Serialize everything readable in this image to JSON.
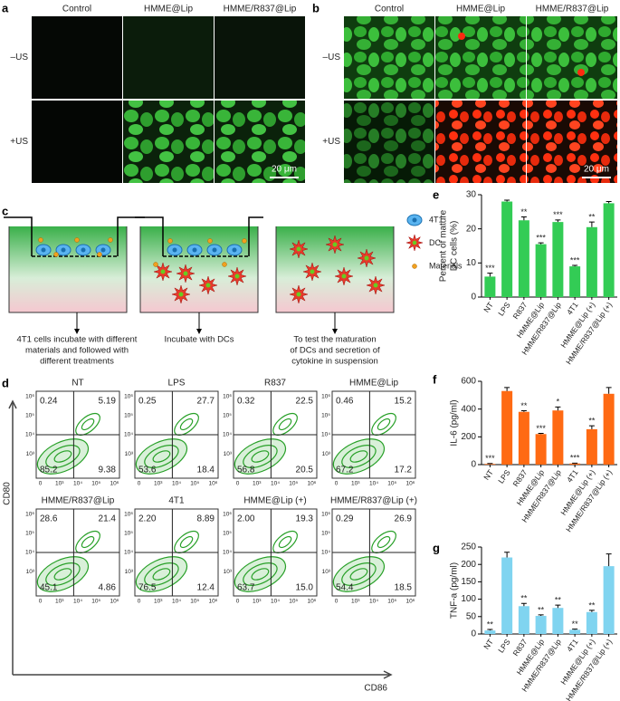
{
  "panel_labels": [
    "a",
    "b",
    "c",
    "d",
    "e",
    "f",
    "g"
  ],
  "microscopy": {
    "a": {
      "columns": [
        "Control",
        "HMME@Lip",
        "HMME/R837@Lip"
      ],
      "rows": [
        "–US",
        "+US"
      ],
      "scale_bar": "20 μm"
    },
    "b": {
      "columns": [
        "Control",
        "HMME@Lip",
        "HMME/R837@Lip"
      ],
      "rows": [
        "–US",
        "+US"
      ],
      "scale_bar": "20 μm"
    }
  },
  "schematic": {
    "legend": [
      "4T1",
      "DC",
      "Materials"
    ],
    "steps": [
      [
        "4T1 cells incubate with different",
        "materials and followed with",
        "different treatments"
      ],
      [
        "Incubate with DCs"
      ],
      [
        "To test the maturation",
        "of DCs and secretion of",
        "cytokine in suspension"
      ]
    ]
  },
  "flow": {
    "y_axis_label": "CD80",
    "x_axis_label": "CD86",
    "tick_labels": [
      "0",
      "10³",
      "10⁴",
      "10⁵",
      "10⁶"
    ],
    "plots": [
      {
        "title": "NT",
        "quadrants": [
          "0.24",
          "5.19",
          "85.2",
          "9.38"
        ]
      },
      {
        "title": "LPS",
        "quadrants": [
          "0.25",
          "27.7",
          "53.6",
          "18.4"
        ]
      },
      {
        "title": "R837",
        "quadrants": [
          "0.32",
          "22.5",
          "56.8",
          "20.5"
        ]
      },
      {
        "title": "HMME@Lip",
        "quadrants": [
          "0.46",
          "15.2",
          "67.2",
          "17.2"
        ]
      },
      {
        "title": "HMME/R837@Lip",
        "quadrants": [
          "28.6",
          "21.4",
          "45.1",
          "4.86"
        ]
      },
      {
        "title": "4T1",
        "quadrants": [
          "2.20",
          "8.89",
          "76.5",
          "12.4"
        ]
      },
      {
        "title": "HMME@Lip (+)",
        "quadrants": [
          "2.00",
          "19.3",
          "63.7",
          "15.0"
        ]
      },
      {
        "title": "HMME/R837@Lip (+)",
        "quadrants": [
          "0.29",
          "26.9",
          "54.4",
          "18.5"
        ]
      }
    ]
  },
  "chart_data": [
    {
      "type": "bar",
      "ylabel": [
        "Percent of mature",
        "DC cells (%)"
      ],
      "categories": [
        "NT",
        "LPS",
        "R837",
        "HMME@Lip",
        "HMME/R837@Lip",
        "4T1",
        "HMME@Lip (+)",
        "HMME/R837@Lip (+)"
      ],
      "values": [
        6,
        28,
        22.5,
        15.5,
        22,
        9,
        20.5,
        27.5
      ],
      "errors": [
        1,
        0.4,
        1,
        0.4,
        0.6,
        0.3,
        1.5,
        0.5
      ],
      "significance": [
        "***",
        null,
        "**",
        "***",
        "***",
        "***",
        "**",
        null
      ],
      "color": "#33cc55",
      "ylim": [
        0,
        30
      ],
      "yticks": [
        0,
        10,
        20,
        30
      ]
    },
    {
      "type": "bar",
      "ylabel": [
        "IL-6 (pg/ml)"
      ],
      "categories": [
        "NT",
        "LPS",
        "R837",
        "HMME@Lip",
        "HMME/R837@Lip",
        "4T1",
        "HMME@Lip (+)",
        "HMME/R837@Lip (+)"
      ],
      "values": [
        5,
        530,
        380,
        220,
        390,
        8,
        255,
        510
      ],
      "errors": [
        3,
        25,
        8,
        5,
        25,
        3,
        25,
        45
      ],
      "significance": [
        "***",
        null,
        "**",
        "***",
        "*",
        "***",
        "**",
        null
      ],
      "color": "#ff6a13",
      "ylim": [
        0,
        600
      ],
      "yticks": [
        0,
        200,
        400,
        600
      ]
    },
    {
      "type": "bar",
      "ylabel": [
        "TNF-a (pg/ml)"
      ],
      "categories": [
        "NT",
        "LPS",
        "R837",
        "HMME@Lip",
        "HMME/R837@Lip",
        "4T1",
        "HMME@Lip (+)",
        "HMME/R837@Lip (+)"
      ],
      "values": [
        10,
        220,
        80,
        52,
        75,
        12,
        63,
        195
      ],
      "errors": [
        3,
        15,
        8,
        3,
        8,
        2,
        5,
        35
      ],
      "significance": [
        "**",
        null,
        "**",
        "**",
        "**",
        "**",
        "**",
        null
      ],
      "color": "#80d4f0",
      "ylim": [
        0,
        250
      ],
      "yticks": [
        0,
        50,
        100,
        150,
        200,
        250
      ]
    }
  ]
}
